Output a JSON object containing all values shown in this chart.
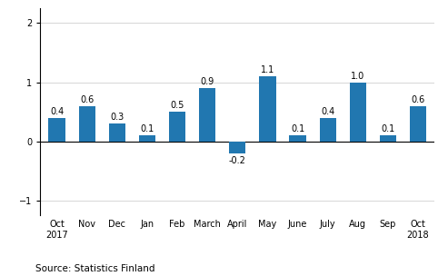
{
  "categories": [
    "Oct\n2017",
    "Nov",
    "Dec",
    "Jan",
    "Feb",
    "March",
    "April",
    "May",
    "June",
    "July",
    "Aug",
    "Sep",
    "Oct\n2018"
  ],
  "values": [
    0.4,
    0.6,
    0.3,
    0.1,
    0.5,
    0.9,
    -0.2,
    1.1,
    0.1,
    0.4,
    1.0,
    0.1,
    0.6
  ],
  "bar_color": "#2177b0",
  "ylim": [
    -1.25,
    2.25
  ],
  "yticks": [
    -1,
    0,
    1,
    2
  ],
  "source_text": "Source: Statistics Finland",
  "label_fontsize": 7.0,
  "tick_fontsize": 7.0,
  "source_fontsize": 7.5,
  "bar_width": 0.55,
  "background_color": "#ffffff",
  "grid_color": "#d0d0d0"
}
